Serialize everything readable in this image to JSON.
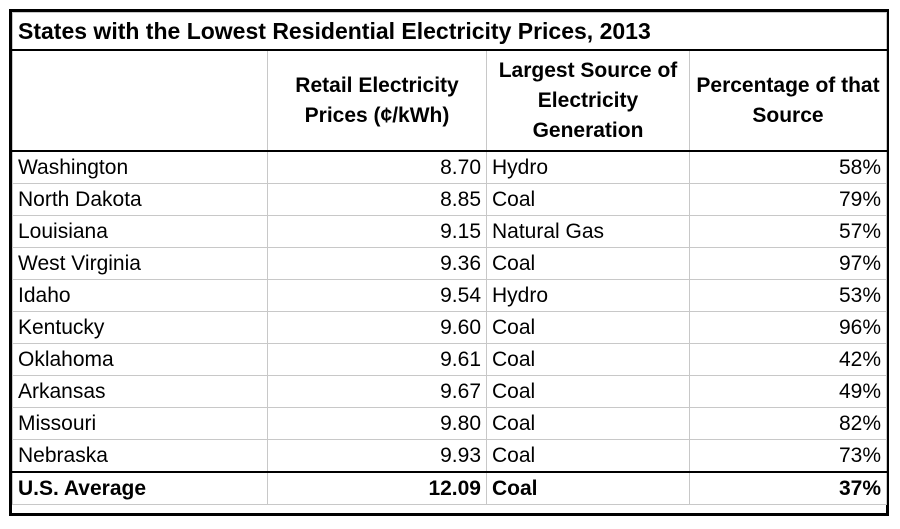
{
  "chart_data": {
    "type": "table",
    "title": "States with the Lowest Residential Electricity Prices, 2013",
    "columns": [
      "",
      "Retail Electricity Prices (¢/kWh)",
      "Largest Source of Electricity Generation",
      "Percentage of that Source"
    ],
    "rows": [
      [
        "Washington",
        "8.70",
        "Hydro",
        "58%"
      ],
      [
        "North Dakota",
        "8.85",
        "Coal",
        "79%"
      ],
      [
        "Louisiana",
        "9.15",
        "Natural Gas",
        "57%"
      ],
      [
        "West Virginia",
        "9.36",
        "Coal",
        "97%"
      ],
      [
        "Idaho",
        "9.54",
        "Hydro",
        "53%"
      ],
      [
        "Kentucky",
        "9.60",
        "Coal",
        "96%"
      ],
      [
        "Oklahoma",
        "9.61",
        "Coal",
        "42%"
      ],
      [
        "Arkansas",
        "9.67",
        "Coal",
        "49%"
      ],
      [
        "Missouri",
        "9.80",
        "Coal",
        "82%"
      ],
      [
        "Nebraska",
        "9.93",
        "Coal",
        "73%"
      ]
    ],
    "total_row": [
      "U.S. Average",
      "12.09",
      "Coal",
      "37%"
    ]
  }
}
